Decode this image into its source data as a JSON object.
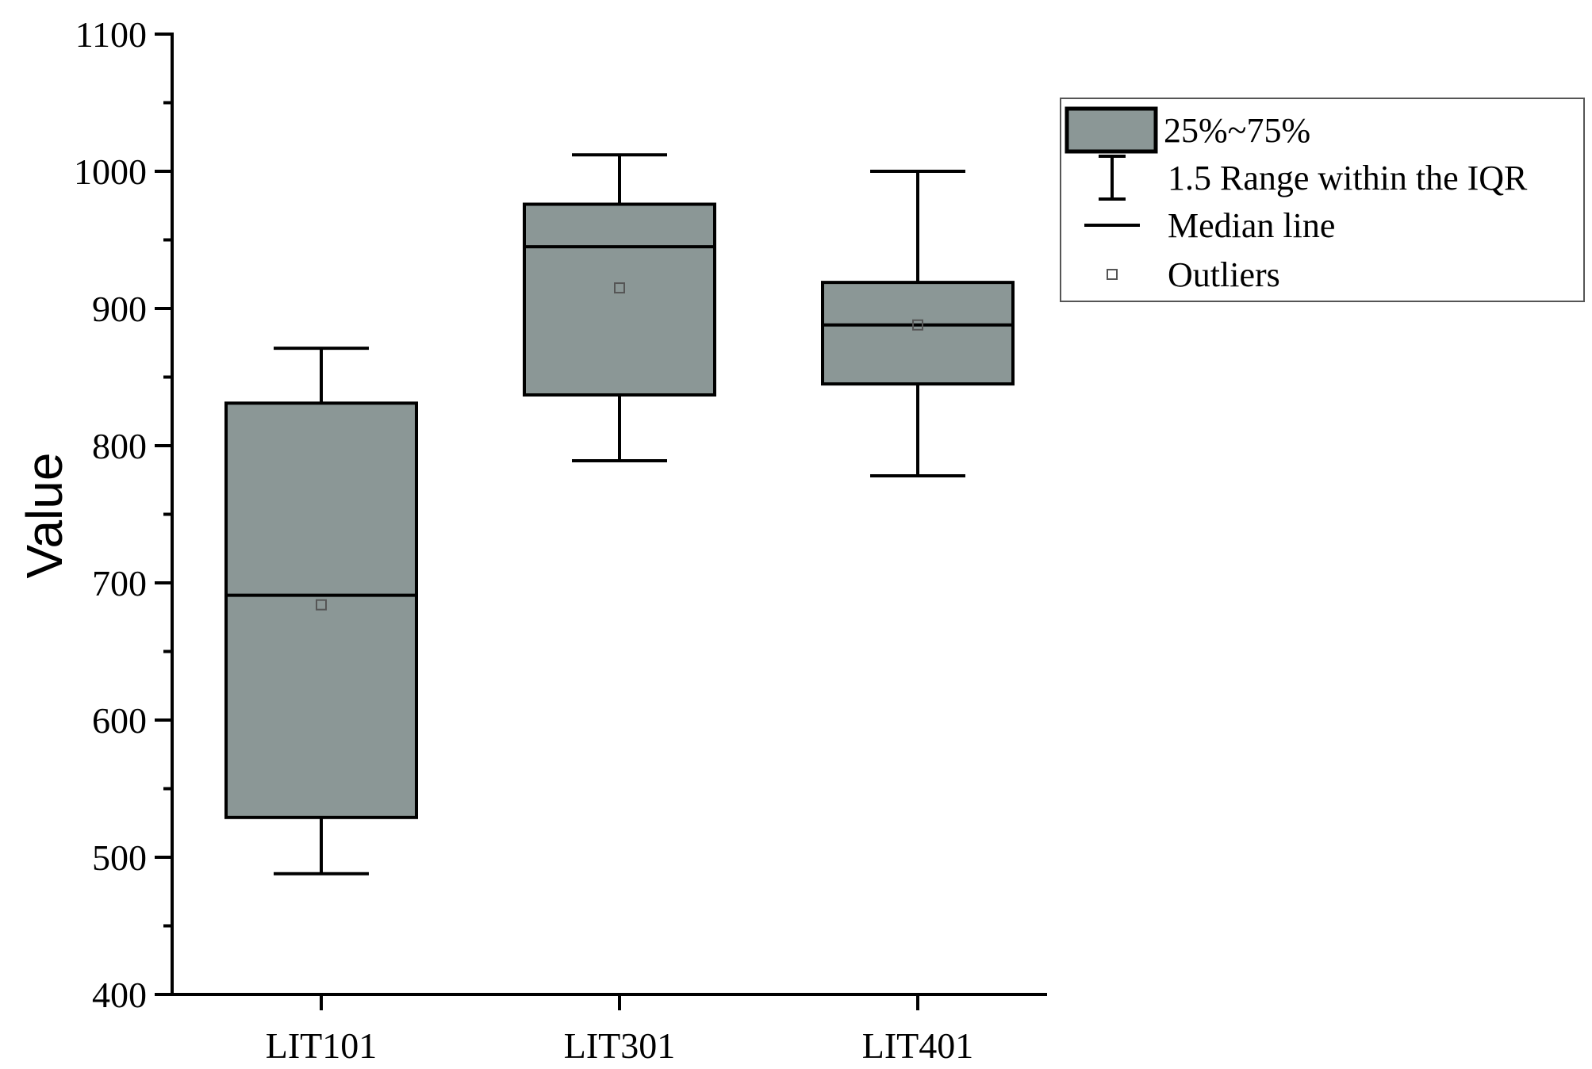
{
  "chart_data": {
    "type": "box",
    "title": "",
    "xlabel": "",
    "ylabel": "Value",
    "ylim": [
      400,
      1100
    ],
    "yticks": [
      400,
      500,
      600,
      700,
      800,
      900,
      1000,
      1100
    ],
    "categories": [
      "LIT101",
      "LIT301",
      "LIT401"
    ],
    "boxes": [
      {
        "category": "LIT101",
        "whisker_low": 488,
        "q1": 529,
        "median": 691,
        "q3": 831,
        "whisker_high": 871,
        "mean": 684
      },
      {
        "category": "LIT301",
        "whisker_low": 789,
        "q1": 837,
        "median": 945,
        "q3": 976,
        "whisker_high": 1012,
        "mean": 915
      },
      {
        "category": "LIT401",
        "whisker_low": 778,
        "q1": 845,
        "median": 888,
        "q3": 919,
        "whisker_high": 1000,
        "mean": 888
      }
    ],
    "legend": {
      "position": "top-right",
      "items": [
        {
          "key": "box",
          "label": "25%~75%"
        },
        {
          "key": "whisker",
          "label": "1.5 Range within the IQR"
        },
        {
          "key": "median",
          "label": "Median line"
        },
        {
          "key": "marker",
          "label": "Outliers"
        }
      ]
    },
    "colors": {
      "box_fill": "#8b9796",
      "stroke": "#000000",
      "marker": "#555555"
    },
    "grid": false
  }
}
